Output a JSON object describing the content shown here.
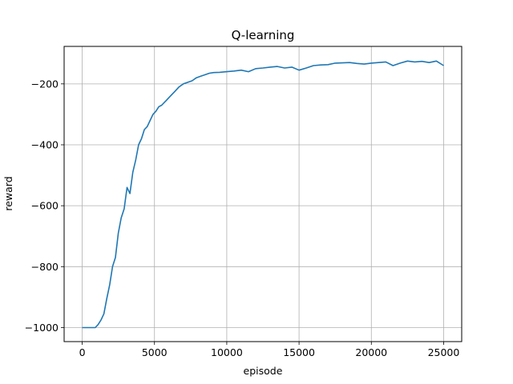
{
  "chart_data": {
    "type": "line",
    "title": "Q-learning",
    "xlabel": "episode",
    "ylabel": "reward",
    "xlim": [
      -1250,
      26250
    ],
    "ylim": [
      -1046,
      -77
    ],
    "xticks": [
      0,
      5000,
      10000,
      15000,
      20000,
      25000
    ],
    "xtick_labels": [
      "0",
      "5000",
      "10000",
      "15000",
      "20000",
      "25000"
    ],
    "yticks": [
      -1000,
      -800,
      -600,
      -400,
      -200
    ],
    "ytick_labels": [
      "−1000",
      "−800",
      "−600",
      "−400",
      "−200"
    ],
    "grid": true,
    "series": [
      {
        "color": "#1f77b4",
        "x": [
          0,
          300,
          600,
          900,
          1100,
          1300,
          1500,
          1700,
          1900,
          2100,
          2300,
          2500,
          2700,
          2900,
          3100,
          3300,
          3500,
          3700,
          3900,
          4100,
          4300,
          4500,
          4700,
          4900,
          5100,
          5300,
          5500,
          5800,
          6100,
          6400,
          6700,
          7000,
          7300,
          7600,
          7900,
          8200,
          8500,
          8800,
          9100,
          9500,
          10000,
          10500,
          11000,
          11500,
          12000,
          12500,
          13000,
          13500,
          14000,
          14500,
          15000,
          15500,
          16000,
          16500,
          17000,
          17500,
          18000,
          18500,
          19000,
          19500,
          20000,
          20500,
          21000,
          21500,
          22000,
          22500,
          23000,
          23500,
          24000,
          24500,
          25000
        ],
        "y": [
          -1000,
          -1000,
          -1000,
          -1000,
          -990,
          -975,
          -955,
          -905,
          -860,
          -800,
          -770,
          -690,
          -640,
          -610,
          -540,
          -560,
          -490,
          -450,
          -400,
          -380,
          -350,
          -340,
          -320,
          -300,
          -290,
          -275,
          -270,
          -255,
          -240,
          -225,
          -210,
          -200,
          -195,
          -190,
          -180,
          -175,
          -170,
          -165,
          -163,
          -162,
          -160,
          -158,
          -155,
          -160,
          -150,
          -148,
          -145,
          -143,
          -148,
          -145,
          -155,
          -148,
          -140,
          -138,
          -137,
          -132,
          -131,
          -130,
          -133,
          -135,
          -132,
          -130,
          -128,
          -140,
          -132,
          -125,
          -128,
          -126,
          -130,
          -125,
          -140
        ]
      }
    ]
  }
}
